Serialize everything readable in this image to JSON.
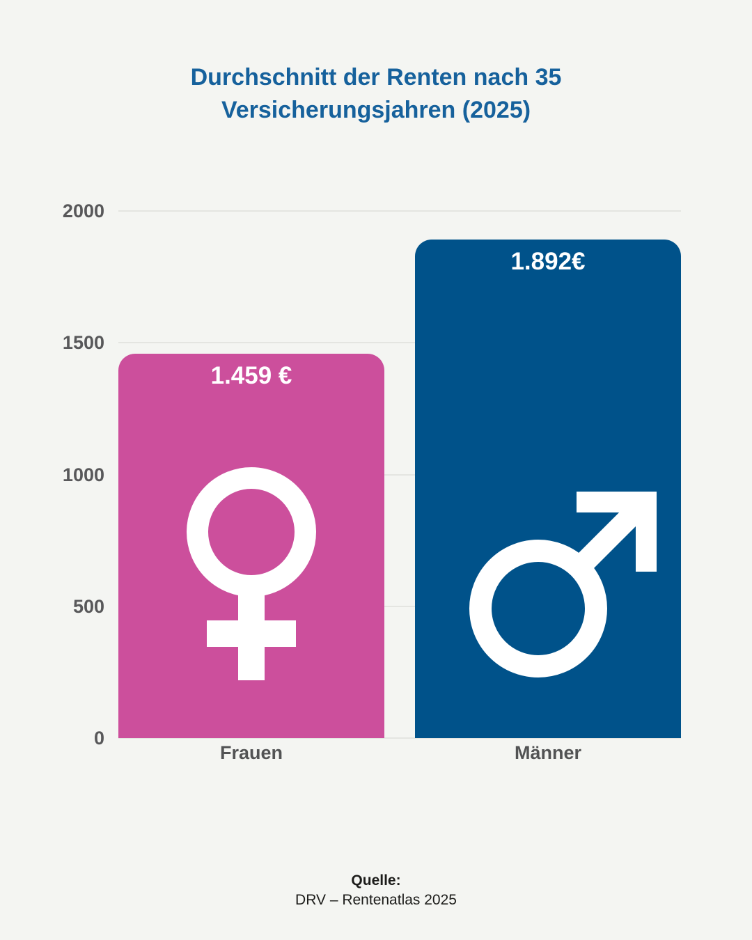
{
  "header": {
    "title_line1": "Durchschnitt der Renten nach 35",
    "title_line2": "Versicherungsjahren (2025)",
    "title_color": "#16619c"
  },
  "chart": {
    "bars": [
      {
        "name": "Frauen",
        "value": 1459,
        "value_label": "1.459 €",
        "color": "#cc4f9c",
        "icon": "female-symbol-icon"
      },
      {
        "name": "Männer",
        "value": 1892,
        "value_label": "1.892€",
        "color": "#00528a",
        "icon": "male-symbol-icon"
      }
    ],
    "ytick_labels": [
      "2000",
      "1500",
      "1000",
      "500",
      "0"
    ]
  },
  "footer": {
    "source_label": "Quelle:",
    "source_text": "DRV – Rentenatlas 2025"
  },
  "chart_data": {
    "type": "bar",
    "title": "Durchschnitt der Renten nach 35 Versicherungsjahren (2025)",
    "categories": [
      "Frauen",
      "Männer"
    ],
    "values": [
      1459,
      1892
    ],
    "value_labels": [
      "1.459 €",
      "1.892€"
    ],
    "series_colors": [
      "#cc4f9c",
      "#00528a"
    ],
    "icon_colors": [
      "#ffffff",
      "#ffffff"
    ],
    "background_color": "#f4f5f2",
    "ylim": [
      0,
      2000
    ],
    "yticks": [
      2000,
      1500,
      1000,
      500,
      0
    ],
    "grid": true,
    "legend": "none",
    "xlabel": "",
    "ylabel": "",
    "source": "Quelle: DRV – Rentenatlas 2025"
  }
}
